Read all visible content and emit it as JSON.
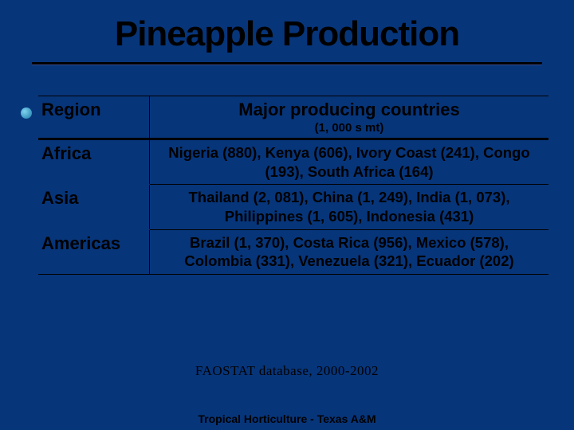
{
  "title": "Pineapple Production",
  "header": {
    "region": "Region",
    "main": "Major producing countries",
    "sub": "(1, 000 s mt)"
  },
  "rows": [
    {
      "region": "Africa",
      "data": "Nigeria (880), Kenya (606), Ivory Coast (241), Congo (193), South Africa (164)"
    },
    {
      "region": "Asia",
      "data": "Thailand (2, 081), China (1, 249), India (1, 073), Philippines (1, 605), Indonesia (431)"
    },
    {
      "region": "Americas",
      "data": "Brazil (1, 370), Costa Rica (956), Mexico (578), Colombia (331), Venezuela (321), Ecuador (202)"
    }
  ],
  "source": "FAOSTAT database, 2000-2002",
  "footer": "Tropical Horticulture - Texas A&M"
}
